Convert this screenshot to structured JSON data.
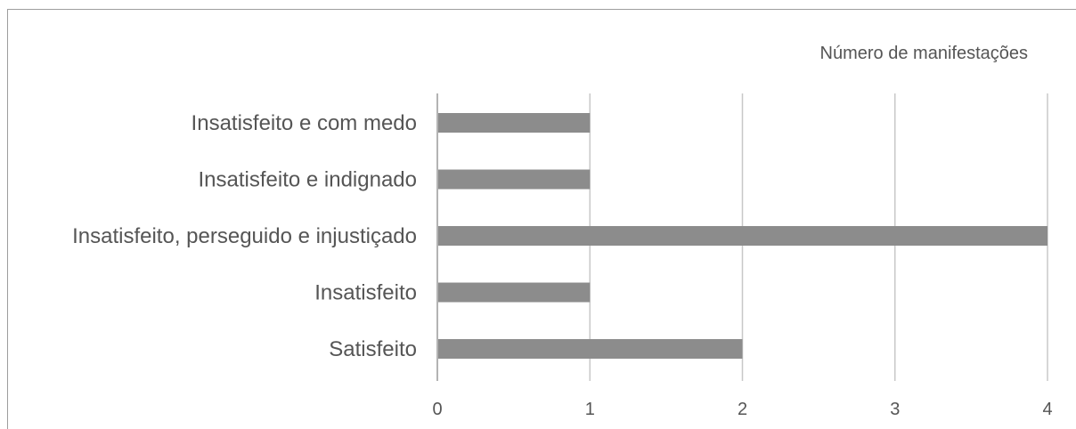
{
  "chart_data": {
    "type": "bar",
    "orientation": "horizontal",
    "categories": [
      "Insatisfeito e com medo",
      "Insatisfeito e indignado",
      "Insatisfeito, perseguido e injustiçado",
      "Insatisfeito",
      "Satisfeito"
    ],
    "series": [
      {
        "name": "Número de manifestações",
        "values": [
          1,
          1,
          4,
          1,
          2
        ],
        "color": "#8c8c8c"
      }
    ],
    "xlim": [
      0,
      4
    ],
    "xticks": [
      "0",
      "1",
      "2",
      "3",
      "4"
    ],
    "grid": true,
    "legend": "top-right",
    "title": "",
    "xlabel": "",
    "ylabel": ""
  }
}
